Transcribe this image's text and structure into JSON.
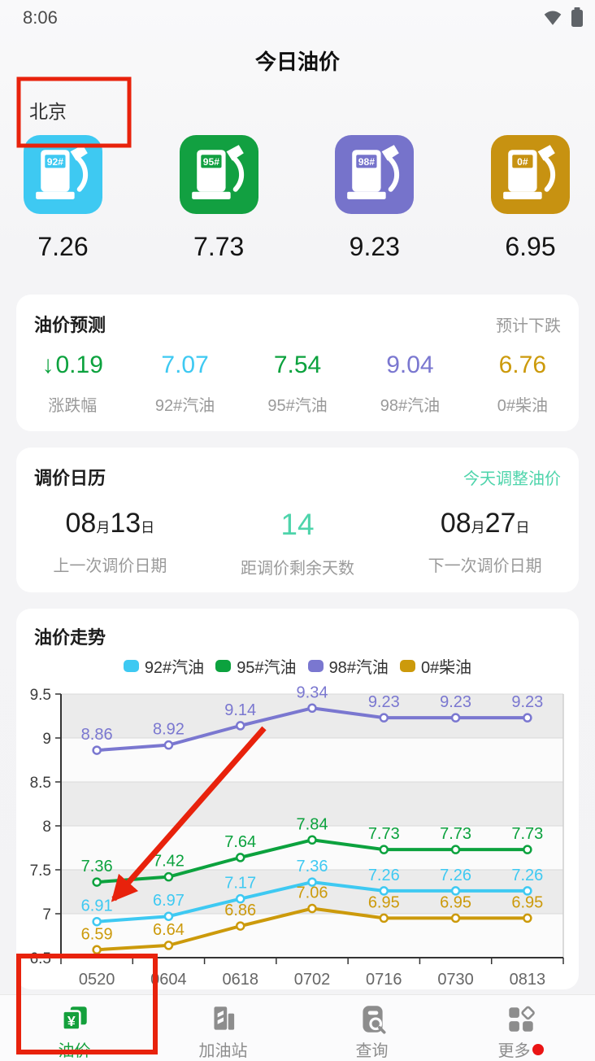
{
  "status_bar": {
    "time": "8:06"
  },
  "header": {
    "title": "今日油价",
    "city": "北京"
  },
  "fuel_cards": {
    "items": [
      {
        "grade": "92#",
        "price": "7.26",
        "color": "#3ec9f2"
      },
      {
        "grade": "95#",
        "price": "7.73",
        "color": "#12a041"
      },
      {
        "grade": "98#",
        "price": "9.23",
        "color": "#7673cb"
      },
      {
        "grade": "0#",
        "price": "6.95",
        "color": "#c79211"
      }
    ]
  },
  "prediction": {
    "title": "油价预测",
    "status": "预计下跌",
    "columns": [
      {
        "arrow": "↓",
        "value": "0.19",
        "label": "涨跌幅"
      },
      {
        "value": "7.07",
        "label": "92#汽油"
      },
      {
        "value": "7.54",
        "label": "95#汽油"
      },
      {
        "value": "9.04",
        "label": "98#汽油"
      },
      {
        "value": "6.76",
        "label": "0#柴油"
      }
    ]
  },
  "calendar": {
    "title": "调价日历",
    "status": "今天调整油价",
    "items": [
      {
        "month": "08",
        "month_unit": "月",
        "day": "13",
        "day_unit": "日",
        "label": "上一次调价日期"
      },
      {
        "value": "14",
        "label": "距调价剩余天数"
      },
      {
        "month": "08",
        "month_unit": "月",
        "day": "27",
        "day_unit": "日",
        "label": "下一次调价日期"
      }
    ]
  },
  "trend": {
    "title": "油价走势"
  },
  "chart_data": {
    "type": "line",
    "title": "油价走势",
    "categories": [
      "0520",
      "0604",
      "0618",
      "0702",
      "0716",
      "0730",
      "0813"
    ],
    "series": [
      {
        "name": "92#汽油",
        "color": "#3ec9f2",
        "values": [
          6.91,
          6.97,
          7.17,
          7.36,
          7.26,
          7.26,
          7.26
        ]
      },
      {
        "name": "95#汽油",
        "color": "#0ca23e",
        "values": [
          7.36,
          7.42,
          7.64,
          7.84,
          7.73,
          7.73,
          7.73
        ]
      },
      {
        "name": "98#汽油",
        "color": "#7a77d0",
        "values": [
          8.86,
          8.92,
          9.14,
          9.34,
          9.23,
          9.23,
          9.23
        ]
      },
      {
        "name": "0#柴油",
        "color": "#cc9a0b",
        "values": [
          6.59,
          6.64,
          6.86,
          7.06,
          6.95,
          6.95,
          6.95
        ]
      }
    ],
    "xlabel": "",
    "ylabel": "",
    "ylim": [
      6.5,
      9.5
    ],
    "ytick_step": 0.5,
    "legend_position": "top",
    "grid": "alternating-bands",
    "point_labels": true
  },
  "nav": {
    "items": [
      {
        "label": "油价",
        "active": true
      },
      {
        "label": "加油站",
        "active": false
      },
      {
        "label": "查询",
        "active": false
      },
      {
        "label": "更多",
        "active": false,
        "badge": true
      }
    ]
  },
  "annotations": {
    "color": "#e8220c",
    "shapes": [
      "box-around-city",
      "box-around-fuel-tab",
      "arrow-to-first-92-point"
    ]
  }
}
